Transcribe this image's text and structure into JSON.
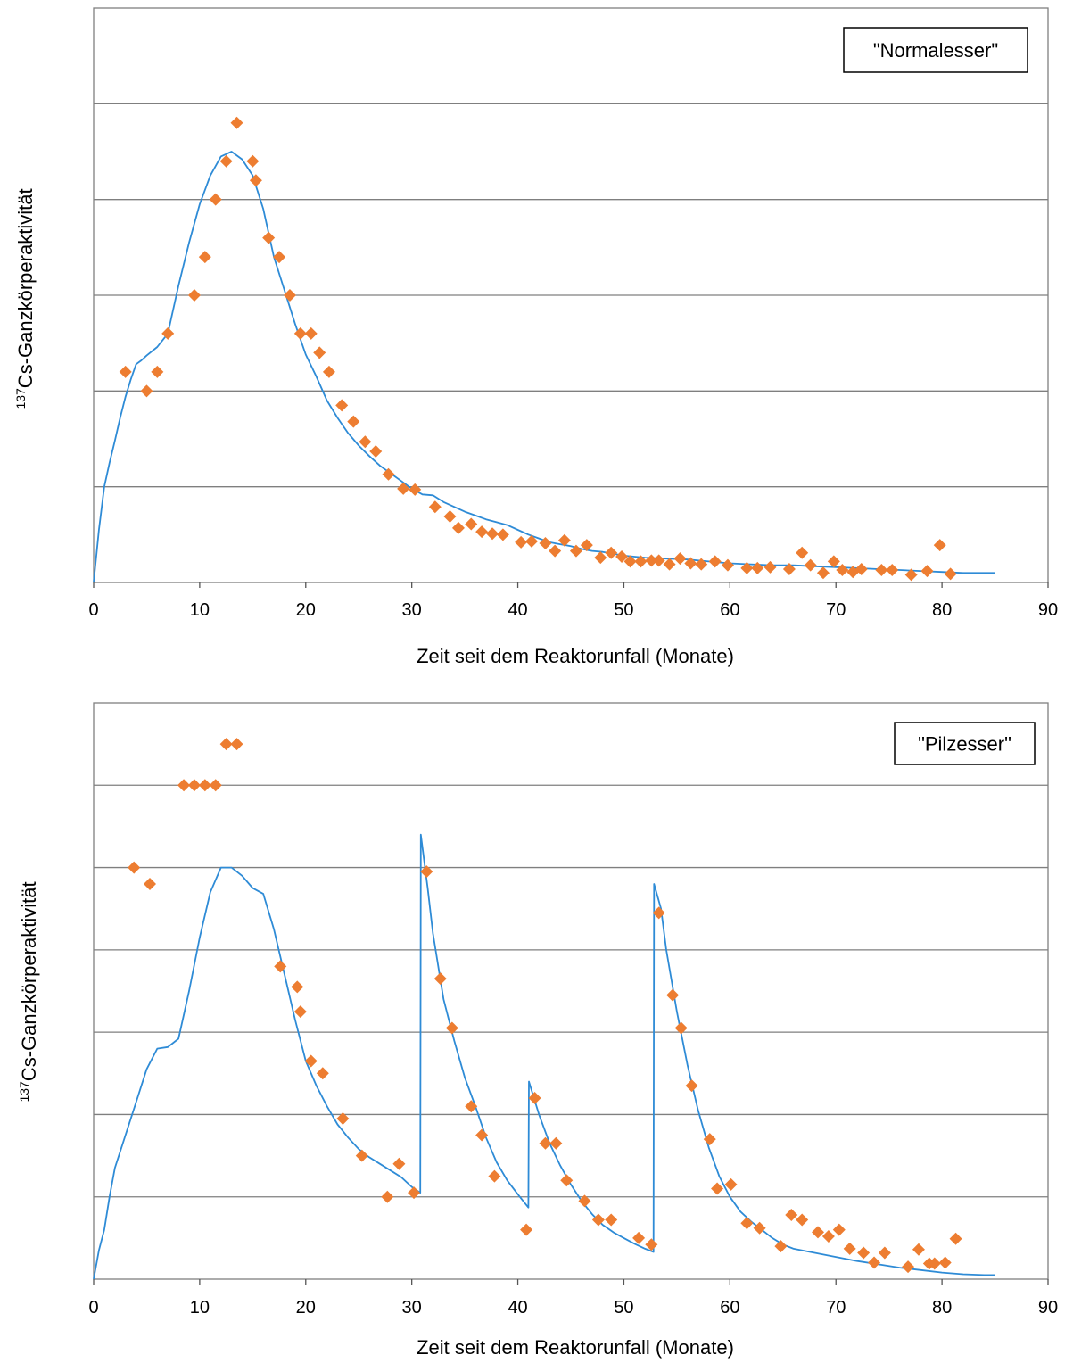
{
  "chart_data": [
    {
      "type": "scatter",
      "xlabel": "Zeit seit dem Reaktorunfall (Monate)",
      "ylabel_super": "137",
      "ylabel_main": "Cs-Ganzkörperaktivität",
      "legend_label": "\"Normalesser\"",
      "legend_position": "top-right",
      "xlim": [
        0,
        90
      ],
      "ylim": [
        0,
        6
      ],
      "x_ticks": [
        0,
        10,
        20,
        30,
        40,
        50,
        60,
        70,
        80,
        90
      ],
      "y_gridlines": [
        1,
        2,
        3,
        4,
        5
      ],
      "colors": {
        "points": "#ED7D31",
        "model": "#2E8BD6",
        "grid": "#7f7f7f"
      },
      "series": [
        {
          "kind": "points",
          "x": [
            3,
            5,
            6,
            7,
            9.5,
            10.5,
            11.5,
            12.5,
            13.5,
            15,
            15.3,
            16.5,
            17.5,
            18.5,
            19.5,
            20.5,
            21.3,
            22.2,
            23.4,
            24.5,
            25.6,
            26.6,
            27.8,
            29.2,
            30.3,
            32.2,
            33.6,
            34.4,
            35.6,
            36.6,
            37.6,
            38.6,
            40.3,
            41.3,
            42.6,
            43.5,
            44.4,
            45.5,
            46.5,
            47.8,
            48.8,
            49.8,
            50.6,
            51.6,
            52.6,
            53.3,
            54.3,
            55.3,
            56.3,
            57.3,
            58.6,
            59.8,
            61.6,
            62.6,
            63.8,
            65.6,
            66.8,
            67.6,
            68.8,
            69.8,
            70.6,
            71.6,
            72.4,
            74.3,
            75.3,
            77.1,
            78.6,
            79.8,
            80.8
          ],
          "y": [
            2.2,
            2.0,
            2.2,
            2.6,
            3.0,
            3.4,
            4.0,
            4.4,
            4.8,
            4.4,
            4.2,
            3.6,
            3.4,
            3.0,
            2.6,
            2.6,
            2.4,
            2.2,
            1.85,
            1.68,
            1.47,
            1.37,
            1.13,
            0.98,
            0.97,
            0.79,
            0.69,
            0.57,
            0.61,
            0.53,
            0.51,
            0.5,
            0.42,
            0.43,
            0.41,
            0.33,
            0.44,
            0.33,
            0.39,
            0.26,
            0.31,
            0.27,
            0.22,
            0.22,
            0.23,
            0.23,
            0.19,
            0.25,
            0.2,
            0.19,
            0.22,
            0.18,
            0.15,
            0.15,
            0.16,
            0.14,
            0.31,
            0.18,
            0.1,
            0.22,
            0.13,
            0.11,
            0.14,
            0.13,
            0.13,
            0.08,
            0.12,
            0.39,
            0.09
          ]
        },
        {
          "kind": "model",
          "x": [
            0,
            0.5,
            1,
            1.5,
            2,
            2.5,
            3,
            3.5,
            4,
            4.5,
            5,
            6,
            7,
            8,
            9,
            10,
            11,
            12,
            13,
            14,
            15,
            16,
            17,
            18,
            19,
            20,
            21,
            22,
            23,
            24,
            25,
            26,
            27,
            28,
            29,
            30,
            31,
            32,
            33,
            34,
            35,
            36,
            37,
            38,
            39,
            40,
            41,
            42,
            43,
            44,
            45,
            46,
            47,
            48,
            49,
            50,
            52,
            54,
            56,
            58,
            60,
            62,
            64,
            66,
            68,
            70,
            72,
            74,
            76,
            78,
            80,
            82,
            84,
            85
          ],
          "y": [
            0,
            0.55,
            1.0,
            1.25,
            1.48,
            1.72,
            1.94,
            2.12,
            2.28,
            2.32,
            2.37,
            2.46,
            2.6,
            3.1,
            3.55,
            3.95,
            4.25,
            4.45,
            4.5,
            4.42,
            4.25,
            3.9,
            3.4,
            3.05,
            2.7,
            2.38,
            2.15,
            1.9,
            1.72,
            1.56,
            1.43,
            1.32,
            1.22,
            1.14,
            1.06,
            0.98,
            0.92,
            0.91,
            0.84,
            0.79,
            0.74,
            0.7,
            0.66,
            0.63,
            0.6,
            0.55,
            0.5,
            0.46,
            0.42,
            0.4,
            0.38,
            0.35,
            0.33,
            0.32,
            0.3,
            0.28,
            0.26,
            0.25,
            0.24,
            0.22,
            0.2,
            0.19,
            0.18,
            0.18,
            0.17,
            0.16,
            0.15,
            0.14,
            0.13,
            0.12,
            0.11,
            0.1,
            0.1,
            0.1
          ]
        }
      ]
    },
    {
      "type": "scatter",
      "xlabel": "Zeit seit dem Reaktorunfall (Monate)",
      "ylabel_super": "137",
      "ylabel_main": "Cs-Ganzkörperaktivität",
      "legend_label": "\"Pilzesser\"",
      "legend_position": "top-right",
      "xlim": [
        0,
        90
      ],
      "ylim": [
        0,
        7
      ],
      "x_ticks": [
        0,
        10,
        20,
        30,
        40,
        50,
        60,
        70,
        80,
        90
      ],
      "y_gridlines": [
        1,
        2,
        3,
        4,
        5,
        6
      ],
      "colors": {
        "points": "#ED7D31",
        "model": "#2E8BD6",
        "grid": "#7f7f7f"
      },
      "series": [
        {
          "kind": "points",
          "x": [
            3.8,
            5.3,
            8.5,
            9.5,
            10.5,
            11.5,
            12.5,
            13.5,
            17.6,
            19.2,
            19.5,
            20.5,
            21.6,
            23.5,
            25.3,
            27.7,
            28.8,
            30.2,
            31.4,
            32.7,
            33.8,
            35.6,
            36.6,
            37.8,
            40.8,
            41.6,
            42.6,
            43.6,
            44.6,
            46.3,
            47.6,
            48.8,
            51.4,
            52.6,
            53.3,
            54.6,
            55.4,
            56.4,
            58.1,
            58.8,
            60.1,
            61.6,
            62.8,
            64.8,
            65.8,
            66.8,
            68.3,
            69.3,
            70.3,
            71.3,
            72.6,
            73.6,
            74.6,
            76.8,
            77.8,
            78.8,
            79.3,
            80.3,
            81.3
          ],
          "y": [
            5.0,
            4.8,
            6.0,
            6.0,
            6.0,
            6.0,
            6.5,
            6.5,
            3.8,
            3.55,
            3.25,
            2.65,
            2.5,
            1.95,
            1.5,
            1.0,
            1.4,
            1.05,
            4.95,
            3.65,
            3.05,
            2.1,
            1.75,
            1.25,
            0.6,
            2.2,
            1.65,
            1.65,
            1.2,
            0.95,
            0.72,
            0.72,
            0.5,
            0.42,
            4.45,
            3.45,
            3.05,
            2.35,
            1.7,
            1.1,
            1.15,
            0.68,
            0.62,
            0.4,
            0.78,
            0.72,
            0.57,
            0.52,
            0.6,
            0.37,
            0.32,
            0.2,
            0.32,
            0.15,
            0.36,
            0.19,
            0.19,
            0.2,
            0.49
          ]
        },
        {
          "kind": "model",
          "x": [
            0,
            0.5,
            1,
            1.5,
            2,
            3,
            4,
            5,
            6,
            7,
            8,
            9,
            10,
            11,
            12,
            13,
            14,
            15,
            16,
            17,
            18,
            19,
            20,
            21,
            22,
            23,
            24,
            25,
            26,
            27,
            28,
            29,
            30,
            30.8,
            30.85,
            31.5,
            32,
            33,
            34,
            35,
            36,
            37,
            38,
            39,
            40,
            41,
            41.05,
            42,
            43,
            44,
            45,
            46,
            47,
            48,
            49,
            50,
            51,
            52,
            52.8,
            52.85,
            53.5,
            54,
            55,
            56,
            57,
            58,
            59,
            60,
            61,
            62,
            63,
            64,
            65,
            66,
            68,
            70,
            72,
            74,
            76,
            78,
            80,
            82,
            84,
            85
          ],
          "y": [
            0,
            0.35,
            0.6,
            1.0,
            1.35,
            1.75,
            2.15,
            2.55,
            2.8,
            2.82,
            2.92,
            3.5,
            4.15,
            4.7,
            5.0,
            5.0,
            4.9,
            4.75,
            4.68,
            4.25,
            3.7,
            3.15,
            2.65,
            2.35,
            2.1,
            1.88,
            1.72,
            1.58,
            1.48,
            1.4,
            1.32,
            1.24,
            1.12,
            1.05,
            5.4,
            4.75,
            4.2,
            3.4,
            2.9,
            2.45,
            2.1,
            1.72,
            1.42,
            1.2,
            1.03,
            0.87,
            2.4,
            2.0,
            1.65,
            1.38,
            1.15,
            0.95,
            0.79,
            0.66,
            0.57,
            0.5,
            0.43,
            0.37,
            0.33,
            4.8,
            4.5,
            4.0,
            3.25,
            2.6,
            2.05,
            1.6,
            1.25,
            1.0,
            0.82,
            0.7,
            0.6,
            0.5,
            0.42,
            0.37,
            0.32,
            0.27,
            0.22,
            0.18,
            0.14,
            0.11,
            0.08,
            0.06,
            0.05,
            0.05
          ]
        }
      ]
    }
  ]
}
